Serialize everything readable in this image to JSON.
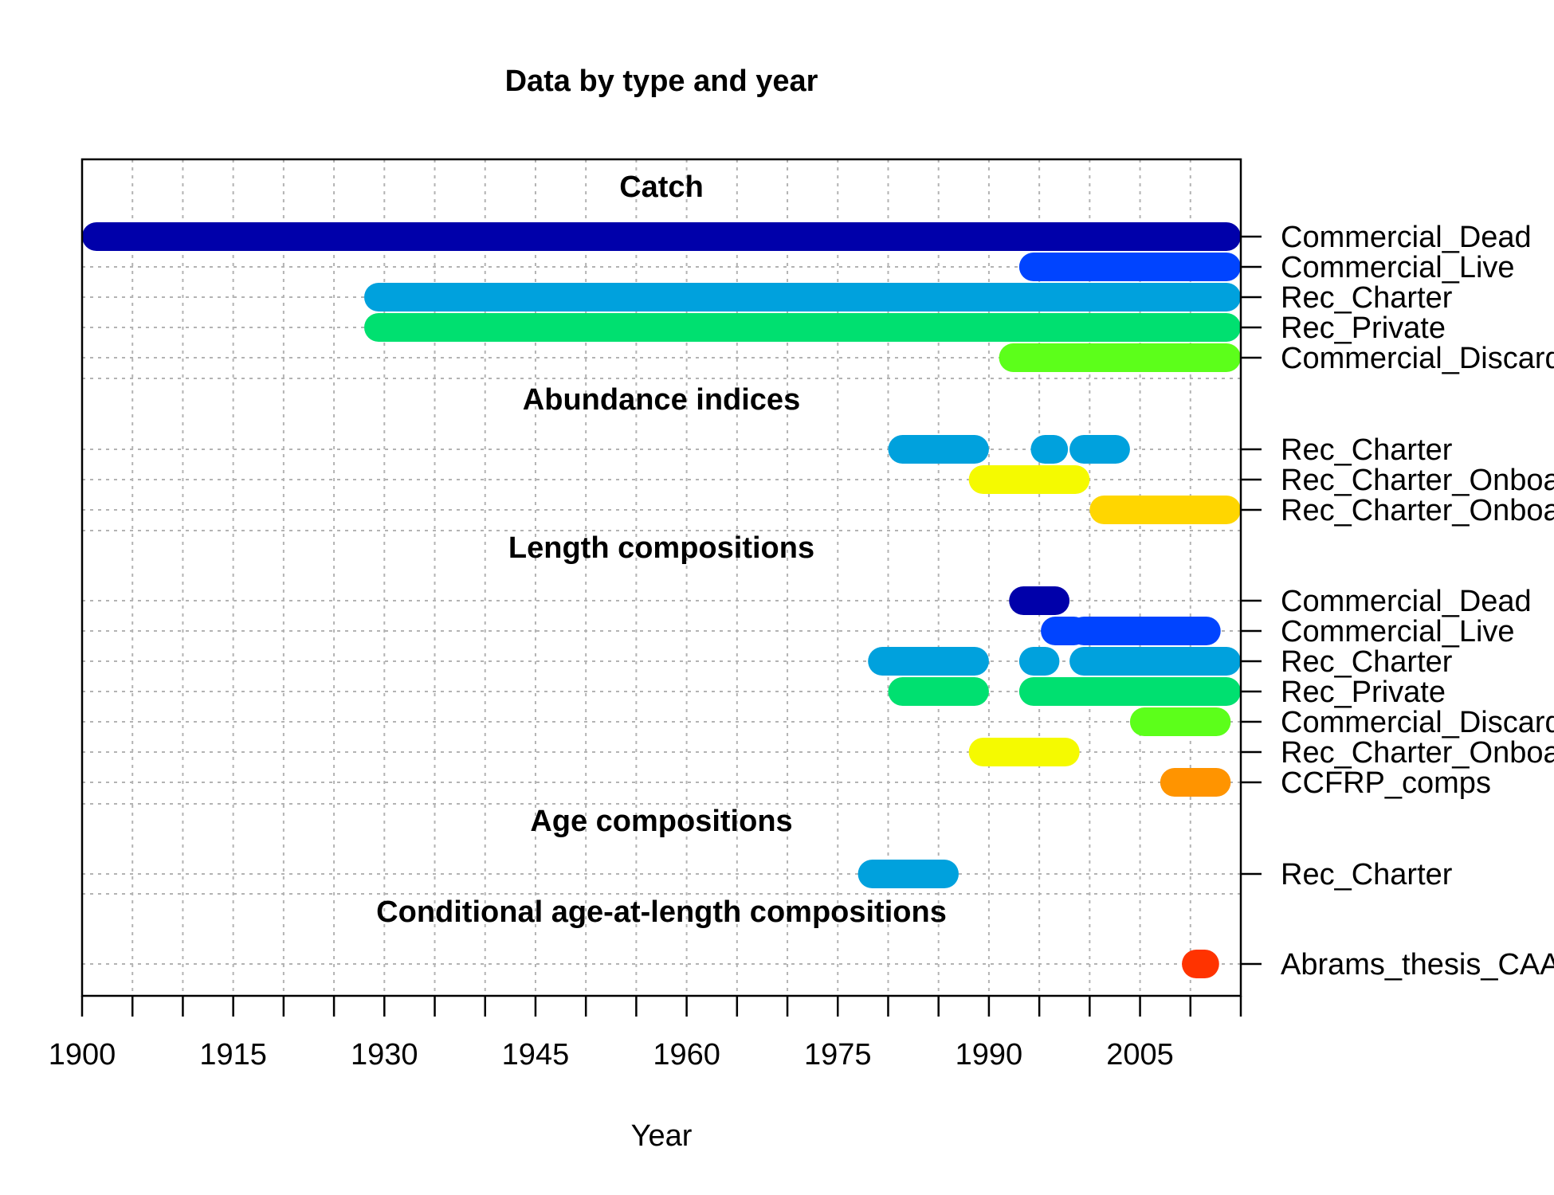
{
  "chart_data": {
    "type": "timeline",
    "title": "Data by type and year",
    "xlabel": "Year",
    "ylabel": "",
    "xlim": [
      1900,
      2015
    ],
    "x_tick_labels": [
      1900,
      1915,
      1930,
      1945,
      1960,
      1975,
      1990,
      2005
    ],
    "x_minor_step": 5,
    "grid": true,
    "sections": [
      {
        "name": "Catch",
        "series": [
          {
            "name": "Commercial_Dead",
            "color": "#0000aa",
            "segments": [
              [
                1900,
                2015
              ]
            ]
          },
          {
            "name": "Commercial_Live",
            "color": "#0044ff",
            "segments": [
              [
                1993,
                2015
              ]
            ]
          },
          {
            "name": "Rec_Charter",
            "color": "#00a1dd",
            "segments": [
              [
                1928,
                2015
              ]
            ]
          },
          {
            "name": "Rec_Private",
            "color": "#00e070",
            "segments": [
              [
                1928,
                2015
              ]
            ]
          },
          {
            "name": "Commercial_Discard",
            "color": "#5cff1a",
            "segments": [
              [
                1991,
                2015
              ]
            ]
          }
        ]
      },
      {
        "name": "Abundance indices",
        "series": [
          {
            "name": "Rec_Charter",
            "color": "#00a1dd",
            "segments": [
              [
                1980,
                1990
              ],
              [
                1995,
                1997
              ],
              [
                1998,
                2004
              ]
            ]
          },
          {
            "name": "Rec_Charter_Onboard",
            "color": "#f5fa00",
            "segments": [
              [
                1988,
                2000
              ]
            ]
          },
          {
            "name": "Rec_Charter_Onboard",
            "color": "#ffd600",
            "segments": [
              [
                2000,
                2015
              ]
            ]
          }
        ]
      },
      {
        "name": "Length compositions",
        "series": [
          {
            "name": "Commercial_Dead",
            "color": "#0000aa",
            "segments": [
              [
                1992,
                1998
              ]
            ]
          },
          {
            "name": "Commercial_Live",
            "color": "#0044ff",
            "segments": [
              [
                1997,
                1998
              ],
              [
                1998,
                2013
              ]
            ]
          },
          {
            "name": "Rec_Charter",
            "color": "#00a1dd",
            "segments": [
              [
                1978,
                1990
              ],
              [
                1993,
                1997
              ],
              [
                1998,
                2015
              ]
            ]
          },
          {
            "name": "Rec_Private",
            "color": "#00e070",
            "segments": [
              [
                1980,
                1990
              ],
              [
                1993,
                2015
              ]
            ]
          },
          {
            "name": "Commercial_Discard",
            "color": "#5cff1a",
            "segments": [
              [
                2004,
                2014
              ]
            ]
          },
          {
            "name": "Rec_Charter_Onboard",
            "color": "#f5fa00",
            "segments": [
              [
                1988,
                1999
              ]
            ]
          },
          {
            "name": "CCFRP_comps",
            "color": "#ff9400",
            "segments": [
              [
                2007,
                2014
              ]
            ]
          }
        ]
      },
      {
        "name": "Age compositions",
        "series": [
          {
            "name": "Rec_Charter",
            "color": "#00a1dd",
            "segments": [
              [
                1977,
                1987
              ]
            ]
          }
        ]
      },
      {
        "name": "Conditional age-at-length compositions",
        "series": [
          {
            "name": "Abrams_thesis_CAAL",
            "color": "#ff3300",
            "segments": [
              [
                2010,
                2012
              ]
            ]
          }
        ]
      }
    ]
  }
}
